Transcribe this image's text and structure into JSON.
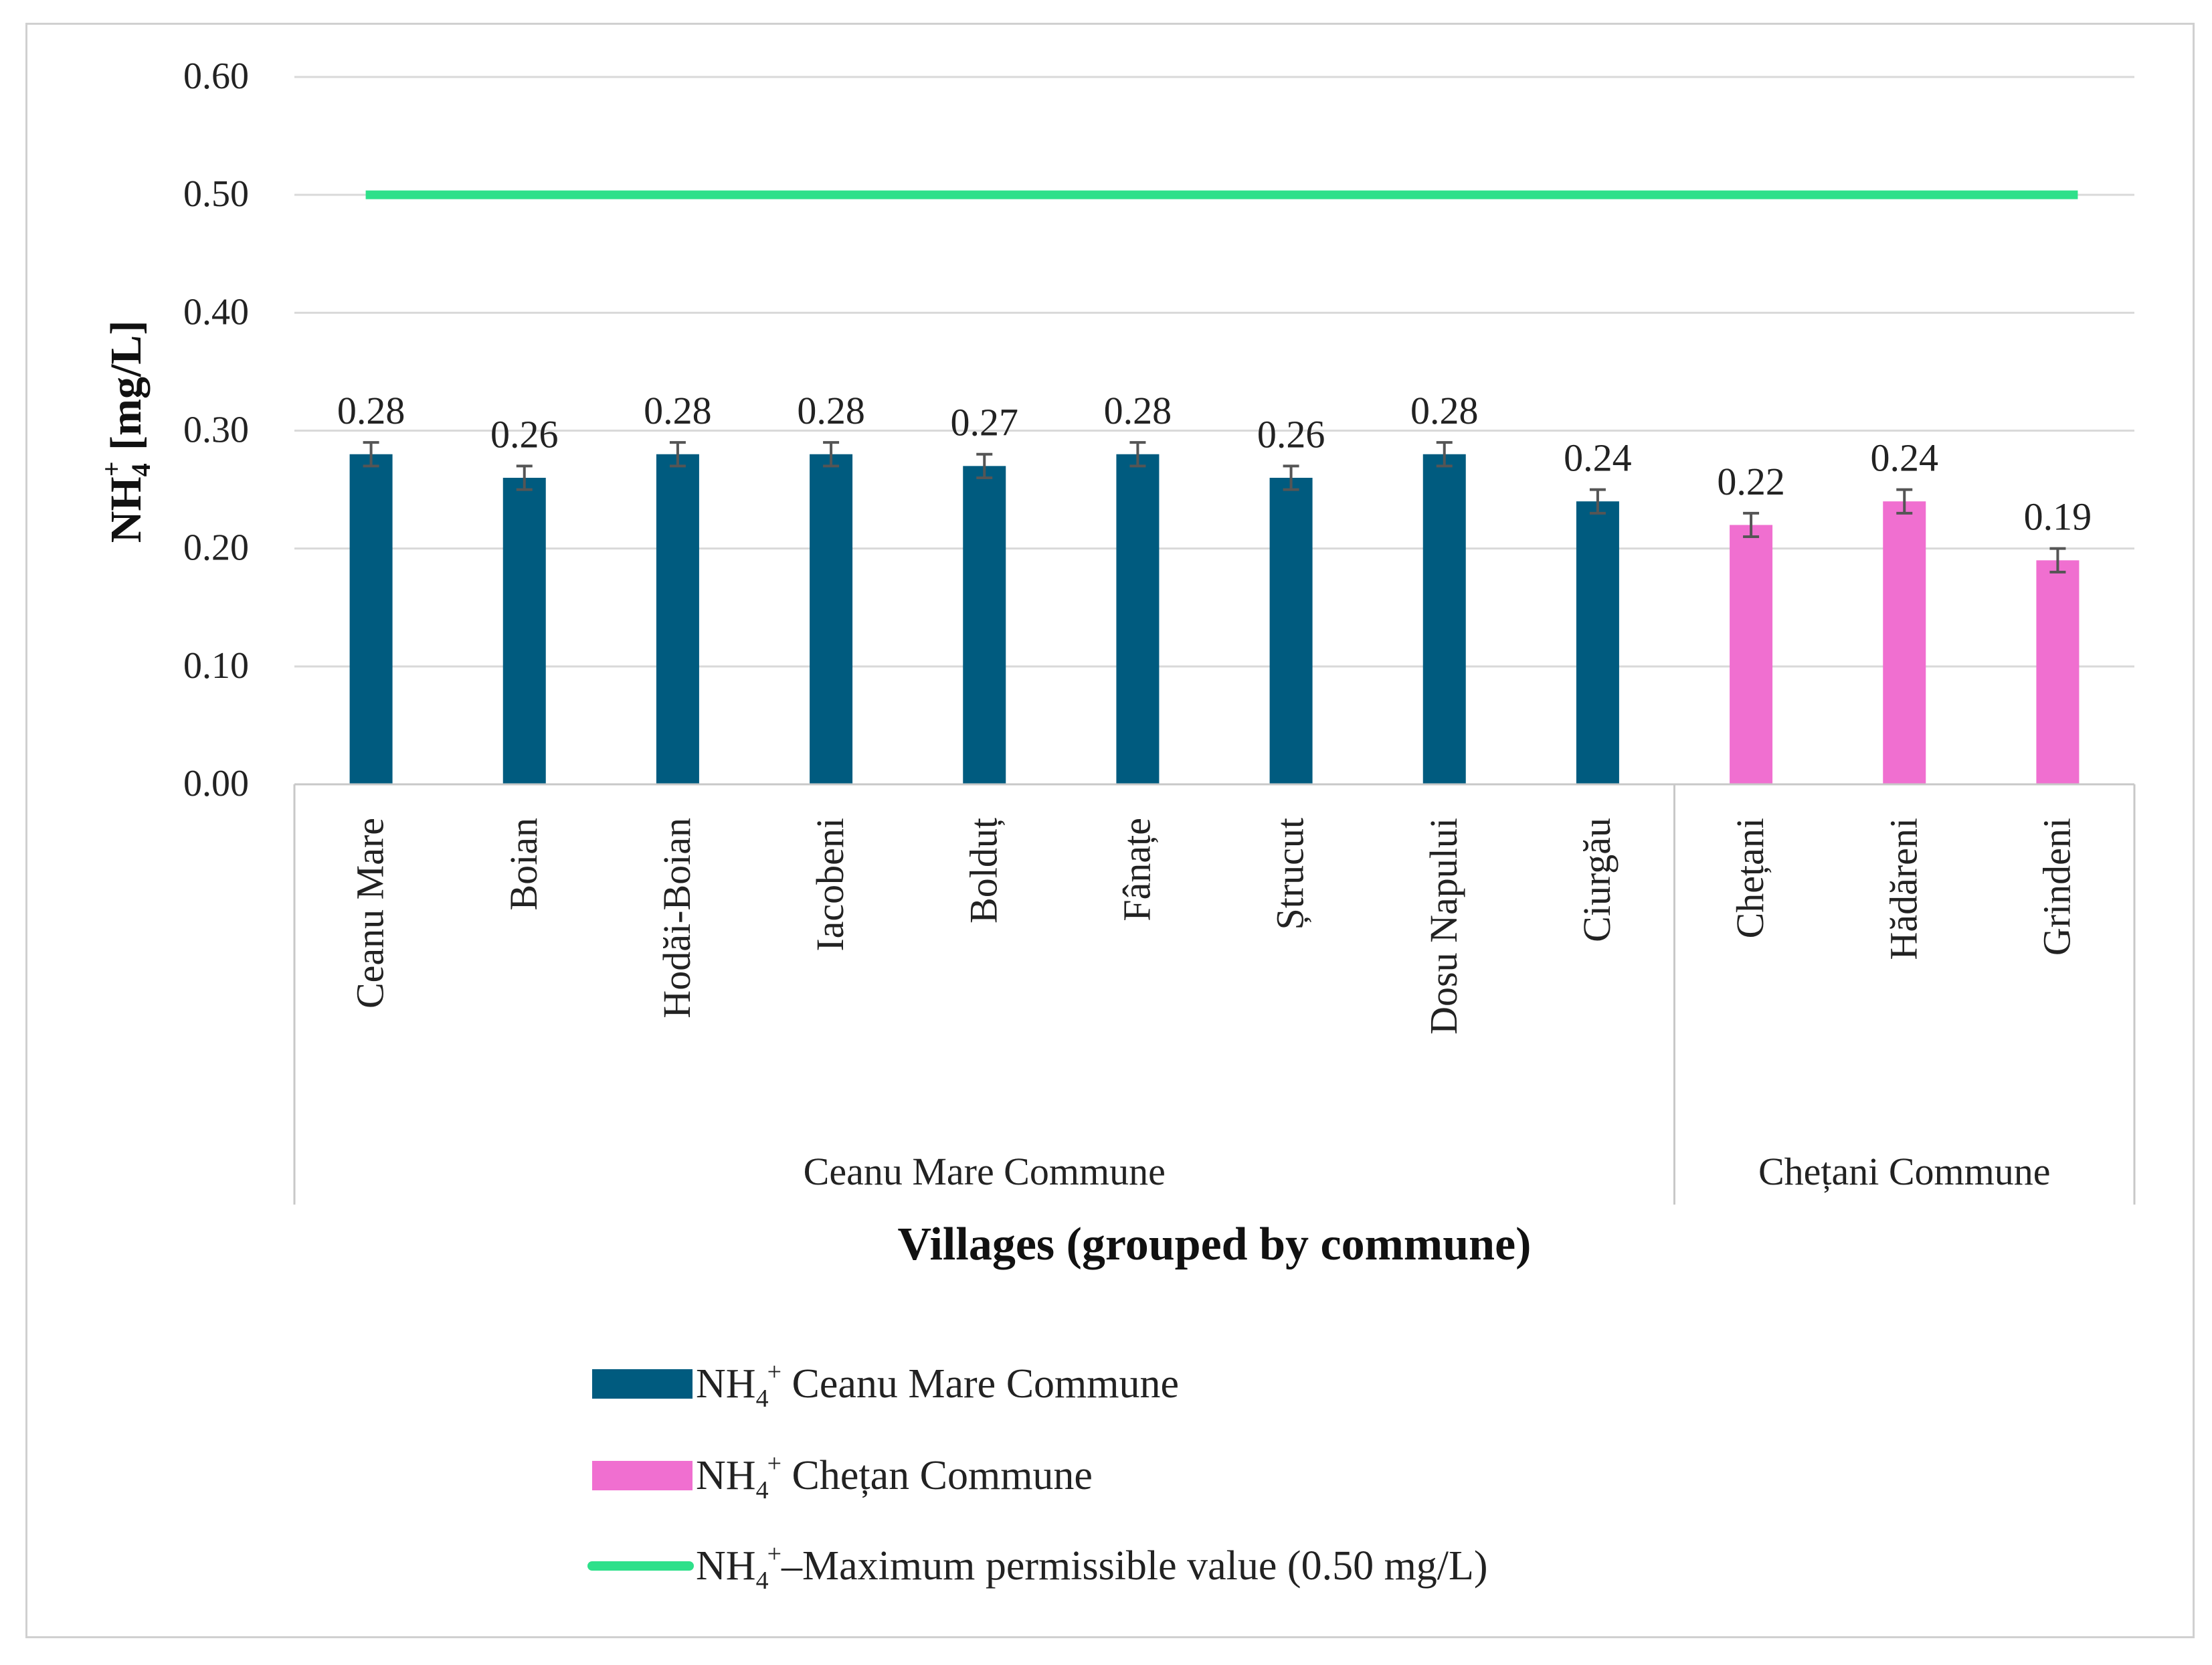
{
  "chart_data": {
    "type": "bar",
    "title": "",
    "ylabel_main": "NH",
    "ylabel_sub": "4",
    "ylabel_sup": "+",
    "ylabel_rest": " [mg/L]",
    "xlabel": "Villages (grouped by commune)",
    "ylim": [
      0,
      0.6
    ],
    "yticks": [
      "0.00",
      "0.10",
      "0.20",
      "0.30",
      "0.40",
      "0.50",
      "0.60"
    ],
    "ytick_values": [
      0,
      0.1,
      0.2,
      0.3,
      0.4,
      0.5,
      0.6
    ],
    "categories": [
      "Ceanu Mare",
      "Boian",
      "Hodăi-Boian",
      "Iacobeni",
      "Bolduț",
      "Fânațe",
      "Ștrucut",
      "Dosu Napului",
      "Ciurgău",
      "Chețani",
      "Hădăreni",
      "Grindeni"
    ],
    "values": [
      0.28,
      0.26,
      0.28,
      0.28,
      0.27,
      0.28,
      0.26,
      0.28,
      0.24,
      0.22,
      0.24,
      0.19
    ],
    "value_labels": [
      "0.28",
      "0.26",
      "0.28",
      "0.28",
      "0.27",
      "0.28",
      "0.26",
      "0.28",
      "0.24",
      "0.22",
      "0.24",
      "0.19"
    ],
    "error": 0.01,
    "groups": [
      {
        "name": "Ceanu Mare Commune",
        "start": 0,
        "end": 8,
        "color": "#005b7f"
      },
      {
        "name": "Chețani Commune",
        "start": 9,
        "end": 11,
        "color": "#f06fd0"
      }
    ],
    "threshold": {
      "value": 0.5,
      "color": "#2ee08a"
    },
    "legend": [
      {
        "kind": "bar",
        "color": "#005b7f",
        "main": "NH",
        "sub": "4",
        "sup": "+",
        "rest": " Ceanu Mare Commune"
      },
      {
        "kind": "bar",
        "color": "#f06fd0",
        "main": "NH",
        "sub": "4",
        "sup": "+",
        "rest": " Chețan Commune"
      },
      {
        "kind": "line",
        "color": "#2ee08a",
        "main": "NH",
        "sub": "4",
        "sup": "+",
        "rest": "–Maximum permissible value (0.50 mg/L)"
      }
    ],
    "legend_position": "bottom-center",
    "grid": true
  }
}
